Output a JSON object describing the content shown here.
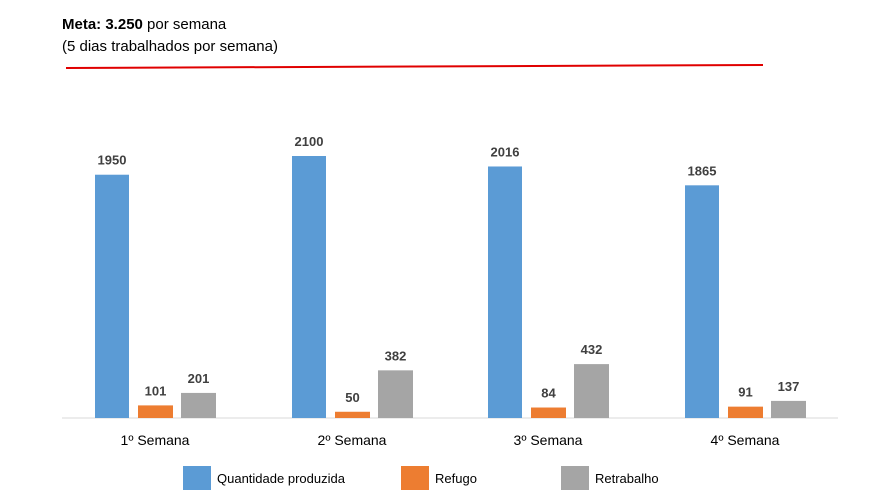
{
  "header": {
    "meta_bold": "Meta: 3.250",
    "meta_rest": " por semana",
    "subtitle": "(5 dias trabalhados por semana)"
  },
  "chart_data": {
    "type": "bar",
    "categories": [
      "1º Semana",
      "2º Semana",
      "3º Semana",
      "4º Semana"
    ],
    "series": [
      {
        "name": "Quantidade produzida",
        "values": [
          1950,
          2100,
          2016,
          1865
        ],
        "color": "#5B9BD5"
      },
      {
        "name": "Refugo",
        "values": [
          101,
          50,
          84,
          91
        ],
        "color": "#ED7D31"
      },
      {
        "name": "Retrabalho",
        "values": [
          201,
          382,
          432,
          137
        ],
        "color": "#A5A5A5"
      }
    ],
    "ylim": [
      0,
      2100
    ],
    "target_line_color": "#E00000",
    "grid": false,
    "legend_position": "bottom"
  }
}
